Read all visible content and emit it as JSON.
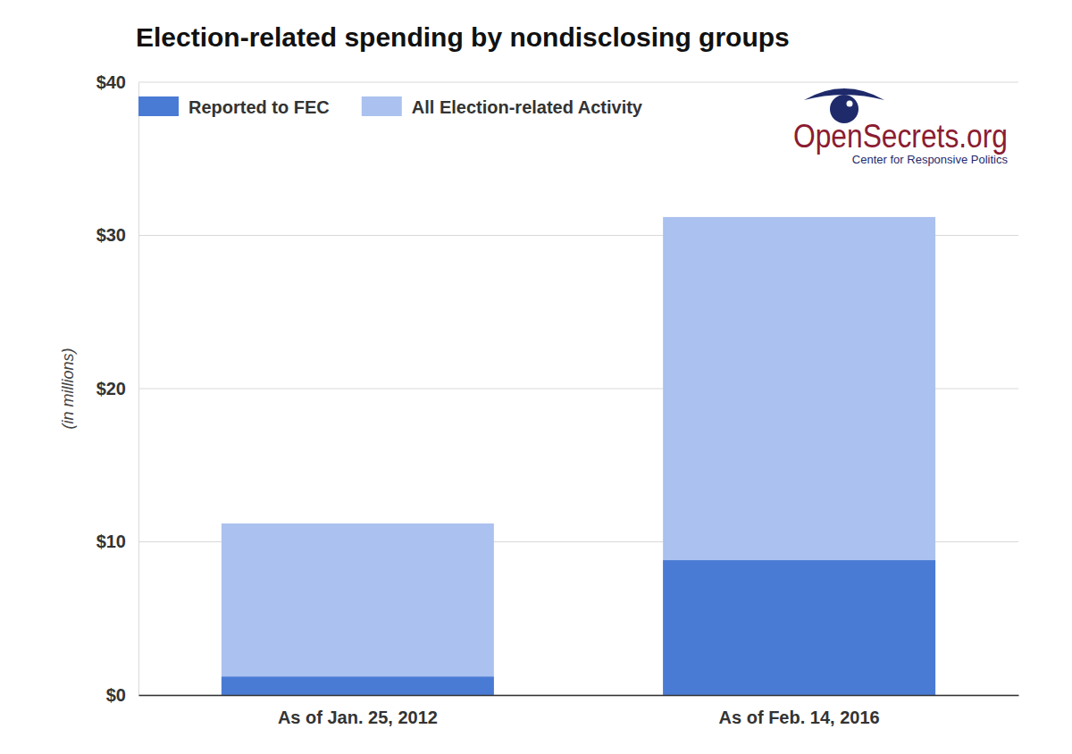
{
  "chart_data": {
    "type": "bar",
    "title": "Election-related spending by nondisclosing groups",
    "y_label": "(in millions)",
    "annotations": [
      "OpenSecrets.org",
      "Center for Responsive Politics"
    ],
    "categories": [
      "As of Jan. 25, 2012",
      "As of Feb. 14, 2016"
    ],
    "series": [
      {
        "name": "Reported to FEC",
        "color": "#4a7bd4",
        "values": [
          1.2,
          8.8
        ]
      },
      {
        "name": "All Election-related Activity",
        "color": "#abc1ef",
        "values": [
          11.2,
          31.2
        ]
      }
    ],
    "stacked": false,
    "ylim": [
      0,
      40
    ],
    "yticks": [
      {
        "value": 0,
        "label": "$0"
      },
      {
        "value": 10,
        "label": "$10"
      },
      {
        "value": 20,
        "label": "$20"
      },
      {
        "value": 30,
        "label": "$30"
      },
      {
        "value": 40,
        "label": "$40"
      }
    ],
    "grid": true,
    "legend": "top-left"
  }
}
